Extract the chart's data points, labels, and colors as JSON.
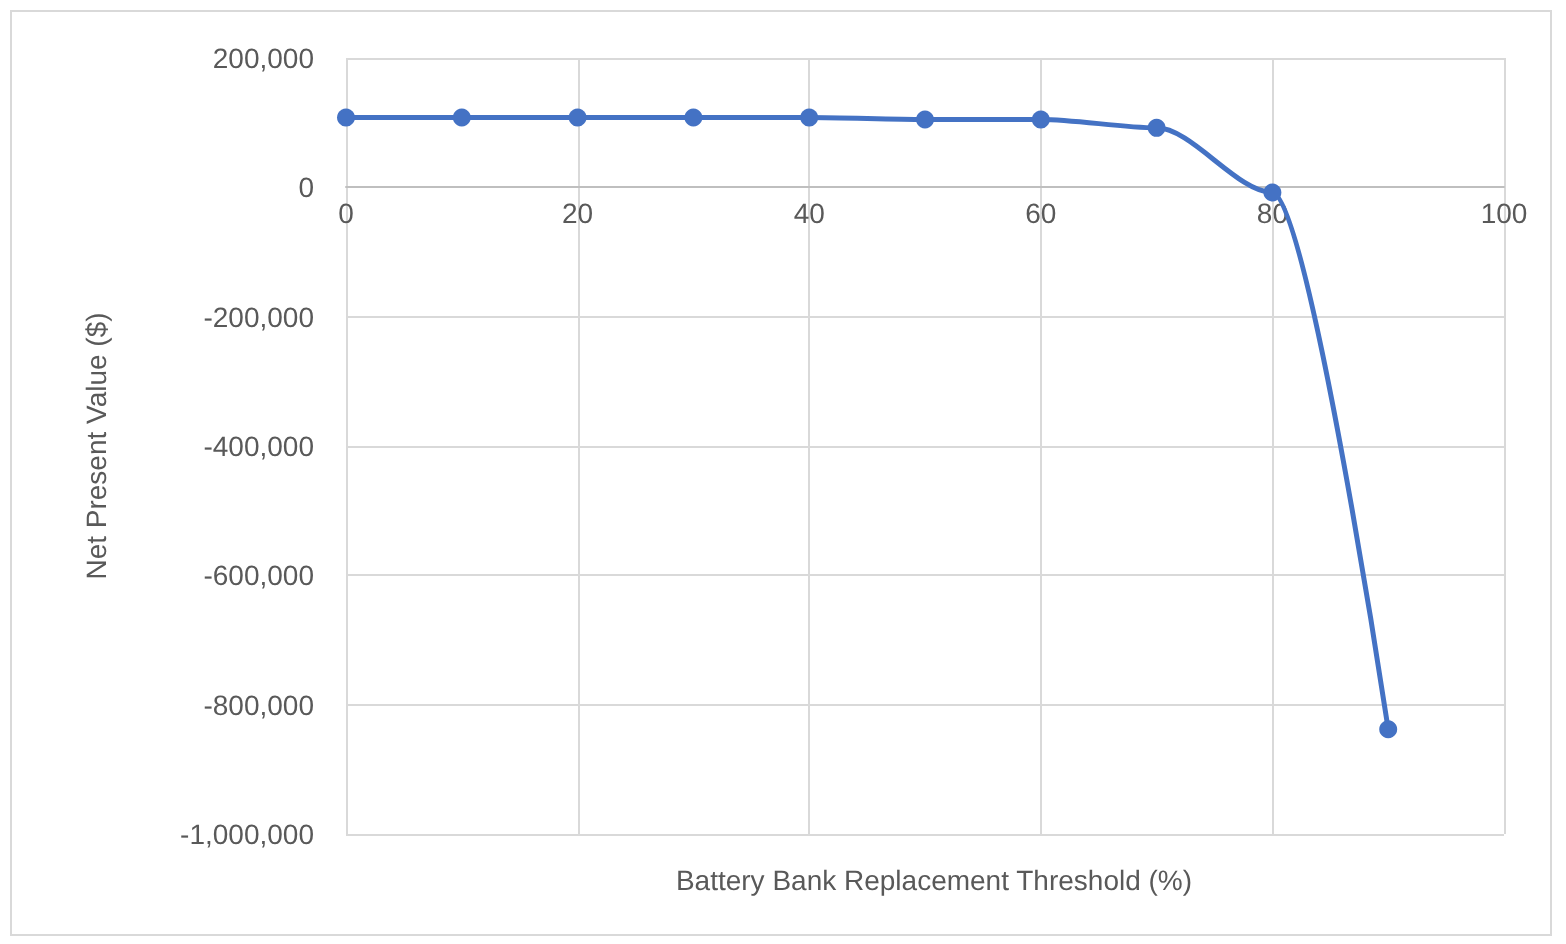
{
  "chart_data": {
    "type": "line",
    "xlabel": "Battery Bank Replacement Threshold (%)",
    "ylabel": "Net Present Value ($)",
    "x": [
      0,
      10,
      20,
      30,
      40,
      50,
      60,
      70,
      80,
      90
    ],
    "series": [
      {
        "color": "#4472c4",
        "values": [
          108000,
          108000,
          108000,
          108000,
          108000,
          105000,
          105000,
          92000,
          -8000,
          -838000
        ]
      }
    ],
    "xlim": [
      0,
      100
    ],
    "xticks": [
      0,
      20,
      40,
      60,
      80,
      100
    ],
    "ylim": [
      -1000000,
      200000
    ],
    "yticks": [
      {
        "value": -1000000,
        "label": "-1,000,000"
      },
      {
        "value": -800000,
        "label": "-800,000"
      },
      {
        "value": -600000,
        "label": "-600,000"
      },
      {
        "value": -400000,
        "label": "-400,000"
      },
      {
        "value": -200000,
        "label": "-200,000"
      },
      0,
      {
        "value": 200000,
        "label": "200,000"
      }
    ],
    "grid": true,
    "marker": "circle",
    "line_style": "solid"
  }
}
